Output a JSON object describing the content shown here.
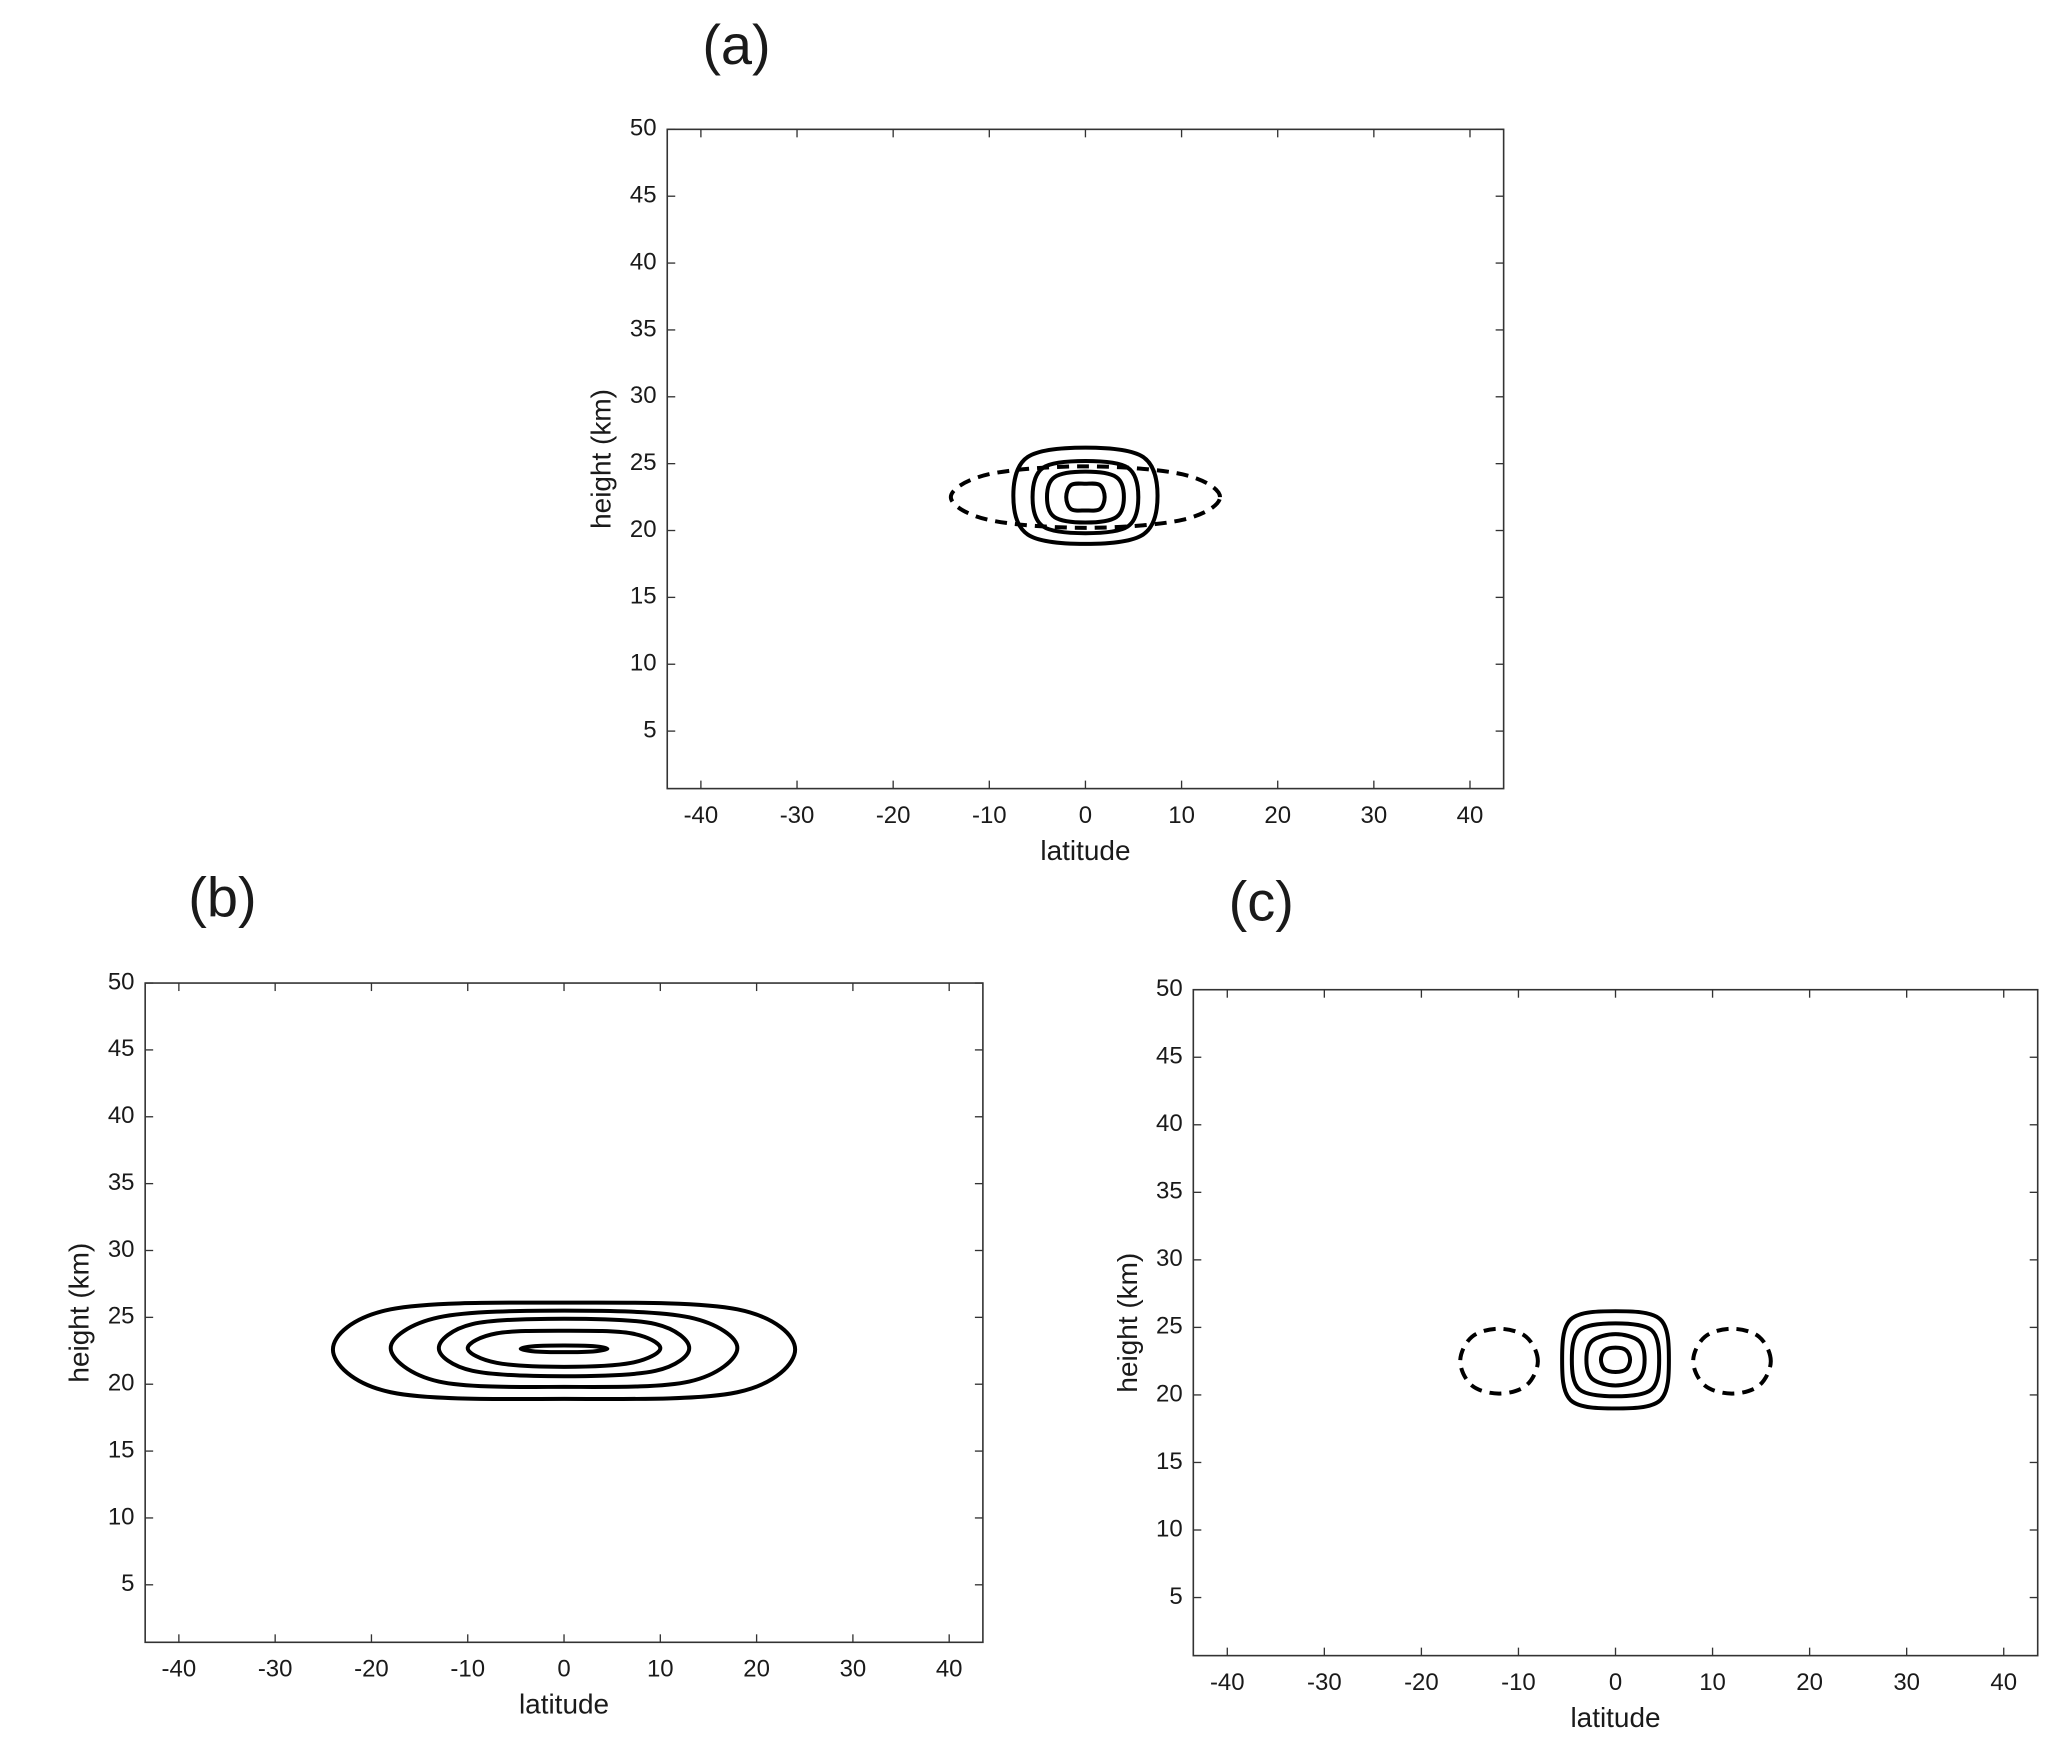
{
  "chart_data": [
    {
      "type": "contour",
      "title": "(a)",
      "x_label": "latitude",
      "y_label": "height (km)",
      "xlim": [
        -43.5,
        43.5
      ],
      "ylim": [
        0.7,
        50
      ],
      "xticks": [
        -40,
        -30,
        -20,
        -10,
        0,
        10,
        20,
        30,
        40
      ],
      "yticks": [
        5,
        10,
        15,
        20,
        25,
        30,
        35,
        40,
        45,
        50
      ],
      "color": "#000000",
      "contours": [
        {
          "style": "dashed",
          "x": [
            14,
            10.1,
            0,
            -10.1,
            -14,
            -10.1,
            0,
            10.1
          ],
          "y": [
            22.5,
            24.2,
            24.8,
            24.2,
            22.5,
            20.8,
            20.2,
            20.8
          ]
        },
        {
          "style": "solid",
          "x": [
            7.5,
            6,
            0,
            -6,
            -7.5,
            -6,
            0,
            6
          ],
          "y": [
            22.6,
            25.5,
            26.2,
            25.5,
            22.6,
            19.7,
            19,
            19.7
          ]
        },
        {
          "style": "solid",
          "x": [
            5.5,
            4.4,
            0,
            -4.4,
            -5.5,
            -4.4,
            0,
            4.4
          ],
          "y": [
            22.5,
            24.7,
            25.2,
            24.7,
            22.5,
            20.3,
            19.8,
            20.3
          ]
        },
        {
          "style": "solid",
          "x": [
            4,
            3.2,
            0,
            -3.2,
            -4,
            -3.2,
            0,
            3.2
          ],
          "y": [
            22.5,
            24,
            24.4,
            24,
            22.5,
            21,
            20.6,
            21
          ]
        },
        {
          "style": "solid",
          "x": [
            2,
            1.5,
            0,
            -1.5,
            -2,
            -1.5,
            0,
            1.5
          ],
          "y": [
            22.5,
            23.4,
            23.5,
            23.4,
            22.5,
            21.6,
            21.5,
            21.6
          ]
        }
      ]
    },
    {
      "type": "contour",
      "title": "(b)",
      "x_label": "latitude",
      "y_label": "height (km)",
      "xlim": [
        -43.5,
        43.5
      ],
      "ylim": [
        0.7,
        50
      ],
      "xticks": [
        -40,
        -30,
        -20,
        -10,
        0,
        10,
        20,
        30,
        40
      ],
      "yticks": [
        5,
        10,
        15,
        20,
        25,
        30,
        35,
        40,
        45,
        50
      ],
      "color": "#000000",
      "contours": [
        {
          "style": "solid",
          "x": [
            24,
            18,
            0,
            -18,
            -24,
            -18,
            0,
            18
          ],
          "y": [
            22.6,
            25.6,
            26.1,
            25.6,
            22.6,
            19.4,
            18.9,
            19.4
          ]
        },
        {
          "style": "solid",
          "x": [
            18,
            13,
            0,
            -13,
            -18,
            -13,
            0,
            13
          ],
          "y": [
            22.7,
            25,
            25.5,
            25,
            22.7,
            20.2,
            19.8,
            20.2
          ]
        },
        {
          "style": "solid",
          "x": [
            13,
            9.5,
            0,
            -9.5,
            -13,
            -9.5,
            0,
            9.5
          ],
          "y": [
            22.7,
            24.5,
            24.9,
            24.5,
            22.7,
            21,
            20.6,
            21
          ]
        },
        {
          "style": "solid",
          "x": [
            10,
            7,
            0,
            -7,
            -10,
            -7,
            0,
            7
          ],
          "y": [
            22.7,
            23.8,
            24,
            23.8,
            22.7,
            21.6,
            21.3,
            21.6
          ]
        },
        {
          "style": "solid",
          "x": [
            4.5,
            3,
            0,
            -3,
            -4.5,
            -3,
            0,
            3
          ],
          "y": [
            22.65,
            22.85,
            22.9,
            22.85,
            22.65,
            22.45,
            22.4,
            22.45
          ]
        }
      ]
    },
    {
      "type": "contour",
      "title": "(c)",
      "x_label": "latitude",
      "y_label": "height (km)",
      "xlim": [
        -43.5,
        43.5
      ],
      "ylim": [
        0.7,
        50
      ],
      "xticks": [
        -40,
        -30,
        -20,
        -10,
        0,
        10,
        20,
        30,
        40
      ],
      "yticks": [
        5,
        10,
        15,
        20,
        25,
        30,
        35,
        40,
        45,
        50
      ],
      "color": "#000000",
      "contours": [
        {
          "style": "dashed",
          "x": [
            -8,
            -9.2,
            -12,
            -14.8,
            -16,
            -14.8,
            -12,
            -9.2
          ],
          "y": [
            22.5,
            24.3,
            24.9,
            24.3,
            22.5,
            20.7,
            20.1,
            20.7
          ]
        },
        {
          "style": "dashed",
          "x": [
            16,
            14.8,
            12,
            9.2,
            8,
            9.2,
            12,
            14.8
          ],
          "y": [
            22.5,
            24.3,
            24.9,
            24.3,
            22.5,
            20.7,
            20.1,
            20.7
          ]
        },
        {
          "style": "solid",
          "x": [
            5.5,
            4.6,
            0,
            -4.6,
            -5.5,
            -4.6,
            0,
            4.6
          ],
          "y": [
            22.6,
            25.6,
            26.2,
            25.6,
            22.6,
            19.6,
            19,
            19.6
          ]
        },
        {
          "style": "solid",
          "x": [
            4.5,
            3.7,
            0,
            -3.7,
            -4.5,
            -3.7,
            0,
            3.7
          ],
          "y": [
            22.6,
            24.8,
            25.3,
            24.8,
            22.6,
            20.4,
            19.9,
            20.4
          ]
        },
        {
          "style": "solid",
          "x": [
            3,
            2.4,
            0,
            -2.4,
            -3,
            -2.4,
            0,
            2.4
          ],
          "y": [
            22.6,
            24,
            24.5,
            24,
            22.6,
            21.2,
            20.7,
            21.2
          ]
        },
        {
          "style": "solid",
          "x": [
            1.5,
            1.1,
            0,
            -1.1,
            -1.5,
            -1.1,
            0,
            1.1
          ],
          "y": [
            22.6,
            23.3,
            23.5,
            23.3,
            22.6,
            21.9,
            21.7,
            21.9
          ]
        }
      ]
    }
  ]
}
